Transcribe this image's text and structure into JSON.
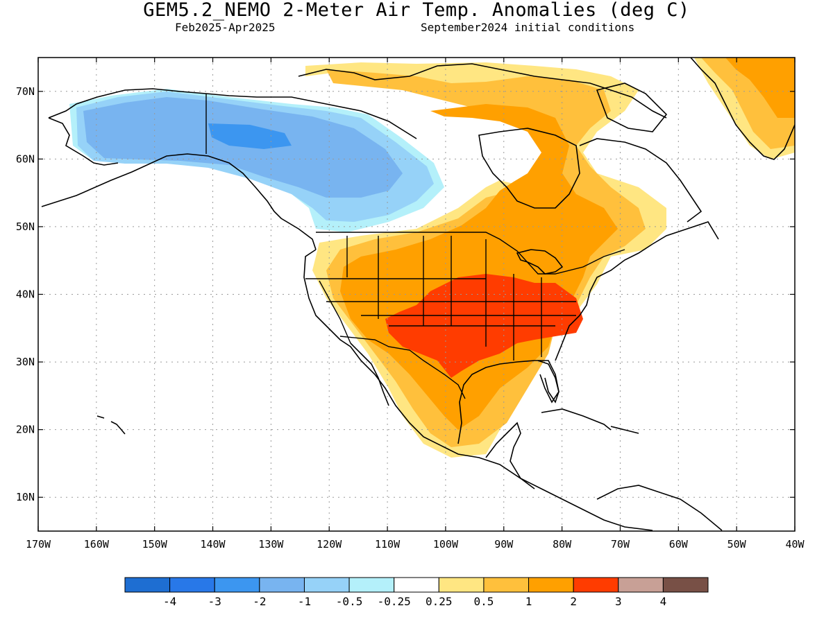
{
  "header": {
    "title": "GEM5.2_NEMO 2-Meter Air Temp. Anomalies (deg C)",
    "period": "Feb2025-Apr2025",
    "init": "September2024 initial conditions"
  },
  "map": {
    "projection": "cylindrical",
    "lon_range": [
      -170,
      -40
    ],
    "lat_range": [
      5,
      75
    ],
    "grid": "dotted",
    "lat_ticks": [
      {
        "lat": 70,
        "label": "70N"
      },
      {
        "lat": 60,
        "label": "60N"
      },
      {
        "lat": 50,
        "label": "50N"
      },
      {
        "lat": 40,
        "label": "40N"
      },
      {
        "lat": 30,
        "label": "30N"
      },
      {
        "lat": 20,
        "label": "20N"
      },
      {
        "lat": 10,
        "label": "10N"
      }
    ],
    "lon_ticks": [
      {
        "lon": -170,
        "label": "170W"
      },
      {
        "lon": -160,
        "label": "160W"
      },
      {
        "lon": -150,
        "label": "150W"
      },
      {
        "lon": -140,
        "label": "140W"
      },
      {
        "lon": -130,
        "label": "130W"
      },
      {
        "lon": -120,
        "label": "120W"
      },
      {
        "lon": -110,
        "label": "110W"
      },
      {
        "lon": -100,
        "label": "100W"
      },
      {
        "lon": -90,
        "label": "90W"
      },
      {
        "lon": -80,
        "label": "80W"
      },
      {
        "lon": -70,
        "label": "70W"
      },
      {
        "lon": -60,
        "label": "60W"
      },
      {
        "lon": -50,
        "label": "50W"
      },
      {
        "lon": -40,
        "label": "40W"
      }
    ],
    "colors": {
      "cold_strong": "#2878e8",
      "cold_med": "#78b4f0",
      "cold_weak": "#96d2f8",
      "cold_slight": "#b4f0fa",
      "warm_slight": "#ffe682",
      "warm_weak": "#ffc03c",
      "warm_med": "#ffa000",
      "warm_strong": "#ff3c00",
      "coast": "#000000"
    }
  },
  "colorbar": {
    "bins": [
      {
        "color": "#1e6ed2"
      },
      {
        "color": "#2878e8"
      },
      {
        "color": "#3c96f0"
      },
      {
        "color": "#78b4f0"
      },
      {
        "color": "#96d2f8"
      },
      {
        "color": "#b4f0fa"
      },
      {
        "color": "#ffffff"
      },
      {
        "color": "#ffe682"
      },
      {
        "color": "#ffc03c"
      },
      {
        "color": "#ffa000"
      },
      {
        "color": "#ff3c00"
      },
      {
        "color": "#c8a096"
      },
      {
        "color": "#785046"
      }
    ],
    "labels": [
      "-4",
      "-3",
      "-2",
      "-1",
      "-0.5",
      "-0.25",
      "0.25",
      "0.5",
      "1",
      "2",
      "3",
      "4"
    ]
  }
}
